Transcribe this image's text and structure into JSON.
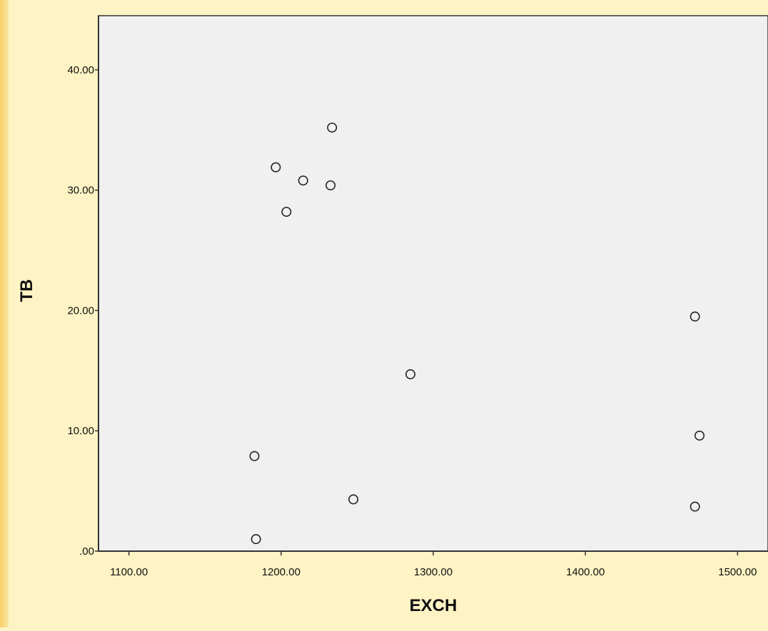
{
  "chart_data": {
    "type": "scatter",
    "title": "",
    "xlabel": "EXCH",
    "ylabel": "TB",
    "xlim": [
      1080,
      1520
    ],
    "ylim": [
      0,
      44.5
    ],
    "xticks": [
      1100,
      1200,
      1300,
      1400,
      1500
    ],
    "xtick_labels": [
      "1100.00",
      "1200.00",
      "1300.00",
      "1400.00",
      "1500.00"
    ],
    "yticks": [
      0,
      10,
      20,
      30,
      40
    ],
    "ytick_labels": [
      ".00",
      "10.00",
      "20.00",
      "30.00",
      "40.00"
    ],
    "grid": false,
    "legend": "none",
    "colors": {
      "plot_background": "#f0f0f0",
      "page_background": "#fdf3c4",
      "marker_stroke": "#222222",
      "marker_fill": "#f0f0f0",
      "axis": "#333333"
    },
    "marker": "open-circle",
    "points": [
      {
        "x": 1233.5,
        "y": 35.2
      },
      {
        "x": 1196.5,
        "y": 31.9
      },
      {
        "x": 1214.5,
        "y": 30.8
      },
      {
        "x": 1232.5,
        "y": 30.4
      },
      {
        "x": 1203.5,
        "y": 28.2
      },
      {
        "x": 1472.0,
        "y": 19.5
      },
      {
        "x": 1285.0,
        "y": 14.7
      },
      {
        "x": 1475.0,
        "y": 9.6
      },
      {
        "x": 1182.5,
        "y": 7.9
      },
      {
        "x": 1247.5,
        "y": 4.3
      },
      {
        "x": 1472.0,
        "y": 3.7
      },
      {
        "x": 1183.5,
        "y": 1.0
      }
    ]
  }
}
